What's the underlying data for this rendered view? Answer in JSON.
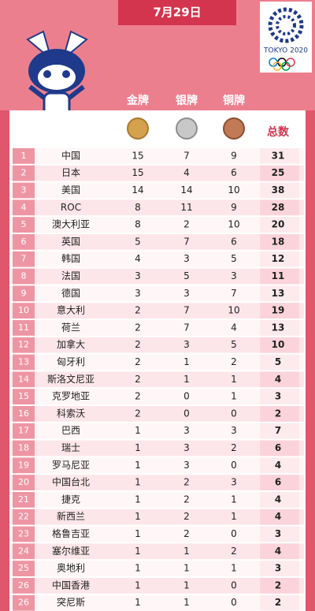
{
  "header": {
    "date": "7月29日",
    "logo_text": "TOKYO 2020"
  },
  "table": {
    "columns": [
      "金牌",
      "银牌",
      "铜牌",
      "总数"
    ],
    "rows": [
      [
        "1",
        "中国",
        15,
        7,
        9,
        31
      ],
      [
        "2",
        "日本",
        15,
        4,
        6,
        25
      ],
      [
        "3",
        "美国",
        14,
        14,
        10,
        38
      ],
      [
        "4",
        "ROC",
        8,
        11,
        9,
        28
      ],
      [
        "5",
        "澳大利亚",
        8,
        2,
        10,
        20
      ],
      [
        "6",
        "英国",
        5,
        7,
        6,
        18
      ],
      [
        "7",
        "韩国",
        4,
        3,
        5,
        12
      ],
      [
        "8",
        "法国",
        3,
        5,
        3,
        11
      ],
      [
        "9",
        "德国",
        3,
        3,
        7,
        13
      ],
      [
        "10",
        "意大利",
        2,
        7,
        10,
        19
      ],
      [
        "11",
        "荷兰",
        2,
        7,
        4,
        13
      ],
      [
        "12",
        "加拿大",
        2,
        3,
        5,
        10
      ],
      [
        "13",
        "匈牙利",
        2,
        1,
        2,
        5
      ],
      [
        "14",
        "斯洛文尼亚",
        2,
        1,
        1,
        4
      ],
      [
        "15",
        "克罗地亚",
        2,
        0,
        1,
        3
      ],
      [
        "16",
        "科索沃",
        2,
        0,
        0,
        2
      ],
      [
        "17",
        "巴西",
        1,
        3,
        3,
        7
      ],
      [
        "18",
        "瑞士",
        1,
        3,
        2,
        6
      ],
      [
        "19",
        "罗马尼亚",
        1,
        3,
        0,
        4
      ],
      [
        "20",
        "中国台北",
        1,
        2,
        3,
        6
      ],
      [
        "21",
        "捷克",
        1,
        2,
        1,
        4
      ],
      [
        "22",
        "新西兰",
        1,
        2,
        1,
        4
      ],
      [
        "23",
        "格鲁吉亚",
        1,
        2,
        0,
        3
      ],
      [
        "24",
        "塞尔维亚",
        1,
        1,
        2,
        4
      ],
      [
        "25",
        "奥地利",
        1,
        1,
        1,
        3
      ],
      [
        "26",
        "中国香港",
        1,
        1,
        0,
        2
      ],
      [
        "26",
        "突尼斯",
        1,
        1,
        0,
        2
      ]
    ]
  }
}
